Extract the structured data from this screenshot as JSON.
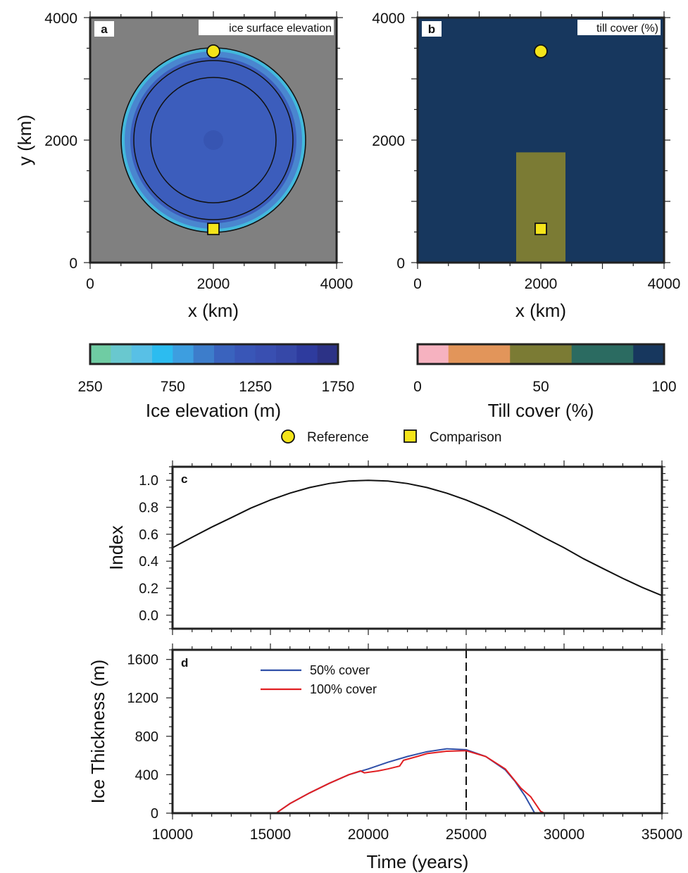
{
  "chart_data": [
    {
      "panel": "a",
      "type": "heatmap",
      "title": "ice surface elevation",
      "xlabel": "x (km)",
      "ylabel": "y (km)",
      "xlim": [
        0,
        4000
      ],
      "ylim": [
        0,
        4000
      ],
      "xticks": [
        "0",
        "2000",
        "4000"
      ],
      "yticks": [
        "0",
        "2000",
        "4000"
      ],
      "background_color": "#808080",
      "ice_sheet": {
        "center": [
          2000,
          2000
        ],
        "radius_km": 1500,
        "interior_elevation_m": 1600
      },
      "contours_radius_km": [
        1020,
        1300
      ],
      "colorbar": {
        "label": "Ice elevation (m)",
        "range": [
          250,
          1750
        ],
        "ticks": [
          "250",
          "750",
          "1250",
          "1750"
        ],
        "colors": [
          "#6fcca3",
          "#69c8cf",
          "#58c0e6",
          "#2cbcf0",
          "#3d9ee0",
          "#3d7dcb",
          "#3a63be",
          "#3956b7",
          "#394fb1",
          "#3648a8",
          "#2e3b9e",
          "#2c3286"
        ]
      },
      "markers": [
        {
          "name": "Reference",
          "shape": "circle",
          "x": 2000,
          "y": 3450,
          "color": "#f4e41a"
        },
        {
          "name": "Comparison",
          "shape": "square",
          "x": 2000,
          "y": 550,
          "color": "#f4e41a"
        }
      ]
    },
    {
      "panel": "b",
      "type": "heatmap",
      "title": "till cover (%)",
      "xlabel": "x (km)",
      "xlim": [
        0,
        4000
      ],
      "ylim": [
        0,
        4000
      ],
      "xticks": [
        "0",
        "2000",
        "4000"
      ],
      "yticks": [
        "0",
        "2000",
        "4000"
      ],
      "background_value_percent": 100,
      "patch": {
        "x_range": [
          1600,
          2400
        ],
        "y_range": [
          0,
          1800
        ],
        "value_percent": 50
      },
      "colorbar": {
        "label": "Till cover (%)",
        "range": [
          0,
          100
        ],
        "ticks": [
          "0",
          "50",
          "100"
        ],
        "bins": [
          {
            "from": 0,
            "to": 12.5,
            "color": "#f6b2c0"
          },
          {
            "from": 12.5,
            "to": 37.5,
            "color": "#e2955a"
          },
          {
            "from": 37.5,
            "to": 62.5,
            "color": "#7b7b34"
          },
          {
            "from": 62.5,
            "to": 87.5,
            "color": "#2b6b61"
          },
          {
            "from": 87.5,
            "to": 100,
            "color": "#17375e"
          }
        ]
      },
      "markers": [
        {
          "name": "Reference",
          "shape": "circle",
          "x": 2000,
          "y": 3450,
          "color": "#f4e41a"
        },
        {
          "name": "Comparison",
          "shape": "square",
          "x": 2000,
          "y": 550,
          "color": "#f4e41a"
        }
      ]
    },
    {
      "panel": "c",
      "type": "line",
      "ylabel": "Index",
      "xlim": [
        10000,
        35000
      ],
      "ylim": [
        -0.1,
        1.1
      ],
      "yticks": [
        "0.0",
        "0.2",
        "0.4",
        "0.6",
        "0.8",
        "1.0"
      ],
      "series": [
        {
          "color": "#111111",
          "x": [
            10000,
            11000,
            12000,
            13000,
            14000,
            15000,
            16000,
            17000,
            18000,
            19000,
            20000,
            21000,
            22000,
            23000,
            24000,
            25000,
            26000,
            27000,
            28000,
            29000,
            30000,
            31000,
            32000,
            33000,
            34000,
            35000
          ],
          "y": [
            0.5,
            0.578,
            0.653,
            0.723,
            0.794,
            0.854,
            0.905,
            0.946,
            0.976,
            0.994,
            1.0,
            0.994,
            0.976,
            0.946,
            0.905,
            0.854,
            0.794,
            0.727,
            0.653,
            0.574,
            0.5,
            0.418,
            0.345,
            0.273,
            0.206,
            0.146
          ]
        }
      ]
    },
    {
      "panel": "d",
      "type": "line",
      "xlabel": "Time (years)",
      "ylabel": "Ice Thickness (m)",
      "xlim": [
        10000,
        35000
      ],
      "ylim": [
        0,
        1700
      ],
      "xticks": [
        "10000",
        "15000",
        "20000",
        "25000",
        "30000",
        "35000"
      ],
      "yticks": [
        "0",
        "400",
        "800",
        "1200",
        "1600"
      ],
      "vline_x": 25000,
      "series": [
        {
          "name": "50% cover",
          "color": "#2f4fa8",
          "x": [
            10000,
            15300,
            15500,
            16000,
            17000,
            18000,
            19000,
            20000,
            21000,
            22000,
            23000,
            24000,
            25000,
            26000,
            27000,
            27500,
            28000,
            28500,
            35000
          ],
          "y": [
            0,
            0,
            30,
            100,
            210,
            310,
            400,
            460,
            530,
            590,
            640,
            670,
            660,
            590,
            450,
            330,
            180,
            0,
            0
          ]
        },
        {
          "name": "100% cover",
          "color": "#e11f22",
          "x": [
            10000,
            15300,
            15500,
            16000,
            17000,
            18000,
            19000,
            19600,
            19800,
            20500,
            21000,
            21600,
            21800,
            22500,
            23000,
            24000,
            25000,
            26000,
            27000,
            27800,
            28300,
            28800,
            29000,
            35000
          ],
          "y": [
            0,
            0,
            30,
            100,
            210,
            310,
            400,
            440,
            420,
            440,
            460,
            490,
            550,
            590,
            620,
            645,
            650,
            590,
            460,
            260,
            170,
            20,
            0,
            0
          ]
        }
      ]
    }
  ],
  "legend_markers": {
    "reference_label": "Reference",
    "comparison_label": "Comparison"
  }
}
